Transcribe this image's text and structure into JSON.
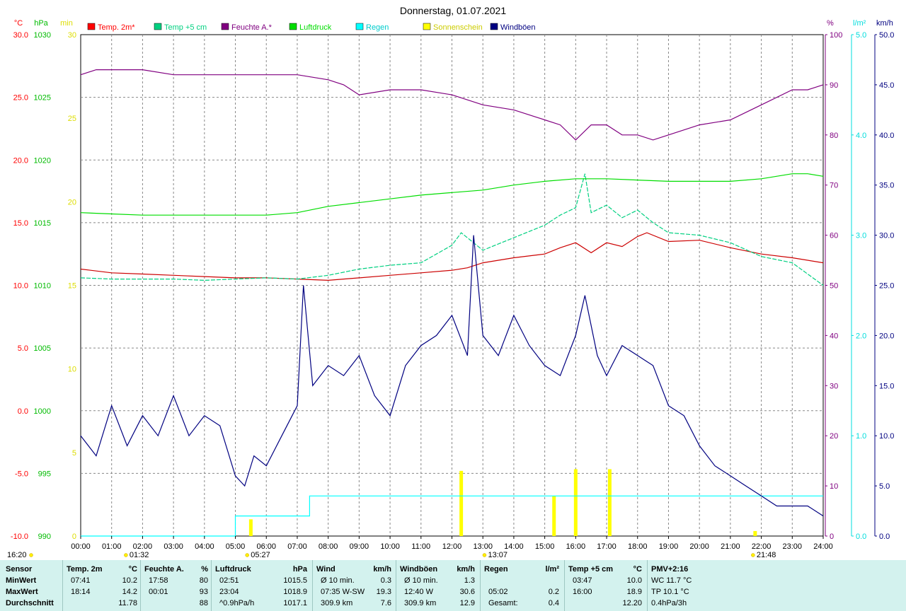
{
  "title": "Donnerstag, 01.07.2021",
  "axes": {
    "left": [
      {
        "unit": "°C",
        "color": "#ff0000",
        "ticks": [
          "30.0",
          "25.0",
          "20.0",
          "15.0",
          "10.0",
          "5.0",
          "0.0",
          "-5.0",
          "-10.0"
        ]
      },
      {
        "unit": "hPa",
        "color": "#00bb00",
        "ticks": [
          "1030",
          "1025",
          "1020",
          "1015",
          "1010",
          "1005",
          "1000",
          "995",
          "990"
        ]
      },
      {
        "unit": "min",
        "color": "#dddd00",
        "ticks": [
          "30",
          "25",
          "20",
          "15",
          "10",
          "5",
          "0"
        ]
      }
    ],
    "right": [
      {
        "unit": "%",
        "color": "#800080",
        "ticks": [
          "100",
          "90",
          "80",
          "70",
          "60",
          "50",
          "40",
          "30",
          "20",
          "10",
          "0"
        ]
      },
      {
        "unit": "l/m²",
        "color": "#00dddd",
        "ticks": [
          "5.0",
          "4.0",
          "3.0",
          "2.0",
          "1.0",
          "0.0"
        ]
      },
      {
        "unit": "km/h",
        "color": "#000080",
        "ticks": [
          "50.0",
          "45.0",
          "40.0",
          "35.0",
          "30.0",
          "25.0",
          "20.0",
          "15.0",
          "10.0",
          "5.0",
          "0.0"
        ]
      }
    ],
    "x_ticks": [
      "00:00",
      "01:00",
      "02:00",
      "03:00",
      "04:00",
      "05:00",
      "06:00",
      "07:00",
      "08:00",
      "09:00",
      "10:00",
      "11:00",
      "12:00",
      "13:00",
      "14:00",
      "15:00",
      "16:00",
      "17:00",
      "18:00",
      "19:00",
      "20:00",
      "21:00",
      "22:00",
      "23:00",
      "24:00"
    ],
    "markers": [
      {
        "label": "01:32",
        "color": "#ccaa00"
      },
      {
        "label": "05:27",
        "color": "#ccaa00"
      },
      {
        "label": "13:07",
        "color": "#ccaa00"
      },
      {
        "label": "21:48",
        "color": "#ccaa00"
      }
    ],
    "time_bottom_left": "16:20"
  },
  "legend": [
    {
      "label": "Temp. 2m*",
      "color": "#ff0000"
    },
    {
      "label": "Temp +5 cm",
      "color": "#00d080"
    },
    {
      "label": "Feuchte A.*",
      "color": "#800080"
    },
    {
      "label": "Luftdruck",
      "color": "#00dd00"
    },
    {
      "label": "Regen",
      "color": "#00ffff"
    },
    {
      "label": "Sonnenschein",
      "color": "#ffff00"
    },
    {
      "label": "Windböen",
      "color": "#000080"
    }
  ],
  "chart_data": {
    "type": "line",
    "x_unit": "hours",
    "x_range": [
      0,
      24
    ],
    "series": [
      {
        "name": "Temp. 2m*",
        "axis": "°C",
        "color": "#cc0000",
        "x": [
          0,
          1,
          2,
          3,
          4,
          5,
          6,
          7,
          8,
          9,
          10,
          11,
          12,
          12.5,
          13,
          14,
          15,
          15.5,
          16,
          16.5,
          17,
          17.5,
          18,
          18.3,
          19,
          20,
          21,
          22,
          23,
          24
        ],
        "values": [
          11.3,
          11.0,
          10.9,
          10.8,
          10.7,
          10.6,
          10.6,
          10.5,
          10.4,
          10.6,
          10.8,
          11.0,
          11.2,
          11.4,
          11.8,
          12.2,
          12.5,
          13.0,
          13.4,
          12.6,
          13.4,
          13.1,
          13.9,
          14.2,
          13.5,
          13.6,
          13.0,
          12.5,
          12.2,
          11.8
        ]
      },
      {
        "name": "Temp +5 cm",
        "axis": "°C",
        "color": "#00d080",
        "x": [
          0,
          1,
          2,
          3,
          4,
          5,
          6,
          7,
          8,
          9,
          10,
          11,
          11.5,
          12,
          12.3,
          13,
          14,
          15,
          15.5,
          16,
          16.3,
          16.5,
          17,
          17.5,
          18,
          18.5,
          19,
          20,
          21,
          22,
          23,
          24
        ],
        "values": [
          10.6,
          10.5,
          10.5,
          10.5,
          10.4,
          10.5,
          10.6,
          10.5,
          10.8,
          11.3,
          11.6,
          11.8,
          12.5,
          13.2,
          14.2,
          12.8,
          13.8,
          14.8,
          15.6,
          16.2,
          18.9,
          15.8,
          16.4,
          15.4,
          16.0,
          15.0,
          14.2,
          14.0,
          13.4,
          12.3,
          11.8,
          10.0
        ]
      },
      {
        "name": "Feuchte A.*",
        "axis": "%",
        "color": "#800080",
        "x": [
          0,
          0.5,
          1,
          2,
          3,
          4,
          5,
          6,
          7,
          8,
          8.5,
          9,
          10,
          11,
          12,
          13,
          14,
          15,
          15.5,
          16,
          16.5,
          17,
          17.5,
          18,
          18.5,
          19,
          20,
          21,
          22,
          23,
          23.5,
          24
        ],
        "values": [
          92,
          93,
          93,
          93,
          92,
          92,
          92,
          92,
          92,
          91,
          90,
          88,
          89,
          89,
          88,
          86,
          85,
          83,
          82,
          79,
          82,
          82,
          80,
          80,
          79,
          80,
          82,
          83,
          86,
          89,
          89,
          90
        ]
      },
      {
        "name": "Luftdruck",
        "axis": "hPa",
        "color": "#00dd00",
        "x": [
          0,
          1,
          2,
          3,
          4,
          5,
          6,
          7,
          8,
          9,
          10,
          11,
          12,
          13,
          14,
          15,
          16,
          17,
          18,
          19,
          20,
          21,
          22,
          23,
          23.5,
          24
        ],
        "values": [
          1015.8,
          1015.7,
          1015.6,
          1015.6,
          1015.6,
          1015.6,
          1015.6,
          1015.8,
          1016.3,
          1016.6,
          1016.9,
          1017.2,
          1017.4,
          1017.6,
          1018.0,
          1018.3,
          1018.5,
          1018.5,
          1018.4,
          1018.3,
          1018.3,
          1018.3,
          1018.5,
          1018.9,
          1018.9,
          1018.7
        ]
      },
      {
        "name": "Regen",
        "axis": "l/m²",
        "color": "#00ffff",
        "x": [
          0,
          5.0,
          5.0,
          7.4,
          7.4,
          24
        ],
        "values": [
          0,
          0,
          0.2,
          0.2,
          0.4,
          0.4
        ]
      },
      {
        "name": "Windböen",
        "axis": "km/h",
        "color": "#000080",
        "x": [
          0,
          0.5,
          1,
          1.5,
          2,
          2.5,
          3,
          3.5,
          4,
          4.5,
          5,
          5.3,
          5.6,
          6,
          6.5,
          7,
          7.2,
          7.5,
          8,
          8.5,
          9,
          9.5,
          10,
          10.5,
          11,
          11.5,
          12,
          12.5,
          12.7,
          13,
          13.5,
          14,
          14.5,
          15,
          15.5,
          16,
          16.3,
          16.7,
          17,
          17.5,
          18,
          18.5,
          19,
          19.5,
          20,
          20.5,
          21,
          21.5,
          22,
          22.5,
          23,
          23.5,
          24
        ],
        "values": [
          10,
          8,
          13,
          9,
          12,
          10,
          14,
          10,
          12,
          11,
          6,
          5,
          8,
          7,
          10,
          13,
          25,
          15,
          17,
          16,
          18,
          14,
          12,
          17,
          19,
          20,
          22,
          18,
          30,
          20,
          18,
          22,
          19,
          17,
          16,
          20,
          24,
          18,
          16,
          19,
          18,
          17,
          13,
          12,
          9,
          7,
          6,
          5,
          4,
          3,
          3,
          3,
          2
        ]
      }
    ],
    "sunshine_bars": [
      {
        "x": 5.5,
        "value": 1.0
      },
      {
        "x": 12.3,
        "value": 3.9
      },
      {
        "x": 15.3,
        "value": 2.4
      },
      {
        "x": 16.0,
        "value": 4.0
      },
      {
        "x": 17.1,
        "value": 4.0
      },
      {
        "x": 21.8,
        "value": 0.3
      }
    ]
  },
  "stats": {
    "columns": [
      {
        "header": "Sensor",
        "unit": "",
        "rows": [
          {
            "time": "",
            "value": "MinWert"
          },
          {
            "time": "",
            "value": "MaxWert"
          },
          {
            "time": "",
            "value": "Durchschnitt"
          }
        ]
      },
      {
        "header": "Temp. 2m",
        "unit": "°C",
        "rows": [
          {
            "time": "07:41",
            "value": "10.2"
          },
          {
            "time": "18:14",
            "value": "14.2"
          },
          {
            "time": "",
            "value": "11.78"
          }
        ]
      },
      {
        "header": "Feuchte A.",
        "unit": "%",
        "rows": [
          {
            "time": "17:58",
            "value": "80"
          },
          {
            "time": "00:01",
            "value": "93"
          },
          {
            "time": "",
            "value": "88"
          }
        ]
      },
      {
        "header": "Luftdruck",
        "unit": "hPa",
        "rows": [
          {
            "time": "02:51",
            "value": "1015.5"
          },
          {
            "time": "23:04",
            "value": "1018.9"
          },
          {
            "time": "^0.9hPa/h",
            "value": "1017.1"
          }
        ]
      },
      {
        "header": "Wind",
        "unit": "km/h",
        "rows": [
          {
            "time": "Ø 10 min.",
            "value": "0.3"
          },
          {
            "time": "07:35   W-SW",
            "value": "19.3"
          },
          {
            "time": "309.9 km",
            "value": "7.6"
          }
        ]
      },
      {
        "header": "Windböen",
        "unit": "km/h",
        "rows": [
          {
            "time": "Ø 10 min.",
            "value": "1.3"
          },
          {
            "time": "12:40       W",
            "value": "30.6"
          },
          {
            "time": "309.9 km",
            "value": "12.9"
          }
        ]
      },
      {
        "header": "Regen",
        "unit": "l/m²",
        "rows": [
          {
            "time": "",
            "value": ""
          },
          {
            "time": "05:02",
            "value": "0.2"
          },
          {
            "time": "Gesamt:",
            "value": "0.4"
          }
        ]
      },
      {
        "header": "Temp +5 cm",
        "unit": "°C",
        "rows": [
          {
            "time": "03:47",
            "value": "10.0"
          },
          {
            "time": "16:00",
            "value": "18.9"
          },
          {
            "time": "",
            "value": "12.20"
          }
        ]
      },
      {
        "header": "PMV+2:16",
        "unit": "",
        "rows": [
          {
            "time": "",
            "value": "WC 11.7 °C"
          },
          {
            "time": "",
            "value": "TP 10.1 °C"
          },
          {
            "time": "",
            "value": "0.4hPa/3h"
          }
        ]
      }
    ]
  }
}
